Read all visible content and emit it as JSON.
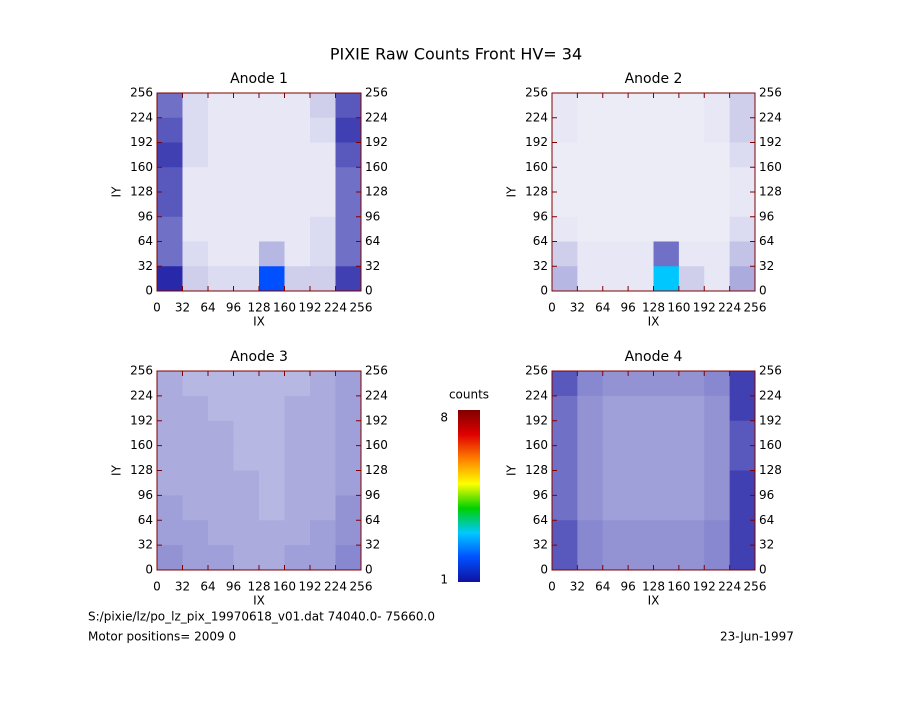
{
  "title": "PIXIE Raw Counts Front HV= 34",
  "footer": {
    "file": "S:/pixie/lz/po_lz_pix_19970618_v01.dat   74040.0- 75660.0",
    "motor": "Motor positions= 2009 0",
    "date": "23-Jun-1997"
  },
  "colorbar": {
    "label": "counts",
    "clim": [
      1,
      8
    ],
    "ticks": [
      1,
      8
    ],
    "colors": [
      "#1010a0",
      "#0050ff",
      "#00c8ff",
      "#00d000",
      "#ffff00",
      "#ff8000",
      "#e00000",
      "#800000"
    ]
  },
  "chart_data": [
    {
      "type": "heatmap",
      "title": "Anode 1",
      "xlabel": "IX",
      "ylabel": "IY",
      "xlim": [
        0,
        256
      ],
      "ylim": [
        0,
        256
      ],
      "xticks": [
        0,
        32,
        64,
        96,
        128,
        160,
        192,
        224,
        256
      ],
      "yticks": [
        0,
        32,
        64,
        96,
        128,
        160,
        192,
        224,
        256
      ],
      "z": [
        [
          0.6,
          0.15,
          0.1,
          0.1,
          0.1,
          0.1,
          0.2,
          0.7
        ],
        [
          0.7,
          0.15,
          0.1,
          0.1,
          0.1,
          0.1,
          0.15,
          0.8
        ],
        [
          0.8,
          0.15,
          0.1,
          0.1,
          0.1,
          0.1,
          0.1,
          0.7
        ],
        [
          0.7,
          0.1,
          0.1,
          0.1,
          0.1,
          0.1,
          0.1,
          0.6
        ],
        [
          0.7,
          0.1,
          0.1,
          0.1,
          0.1,
          0.1,
          0.1,
          0.6
        ],
        [
          0.6,
          0.1,
          0.1,
          0.1,
          0.1,
          0.1,
          0.15,
          0.6
        ],
        [
          0.6,
          0.15,
          0.1,
          0.1,
          0.3,
          0.1,
          0.15,
          0.6
        ],
        [
          0.9,
          0.2,
          0.15,
          0.15,
          2.0,
          0.2,
          0.2,
          0.8
        ]
      ]
    },
    {
      "type": "heatmap",
      "title": "Anode 2",
      "xlabel": "IX",
      "ylabel": "IY",
      "xlim": [
        0,
        256
      ],
      "ylim": [
        0,
        256
      ],
      "xticks": [
        0,
        32,
        64,
        96,
        128,
        160,
        192,
        224,
        256
      ],
      "yticks": [
        0,
        32,
        64,
        96,
        128,
        160,
        192,
        224,
        256
      ],
      "z": [
        [
          0.1,
          0.08,
          0.08,
          0.08,
          0.08,
          0.08,
          0.1,
          0.2
        ],
        [
          0.1,
          0.08,
          0.08,
          0.08,
          0.08,
          0.08,
          0.1,
          0.2
        ],
        [
          0.08,
          0.08,
          0.08,
          0.08,
          0.08,
          0.08,
          0.08,
          0.15
        ],
        [
          0.08,
          0.08,
          0.08,
          0.08,
          0.08,
          0.08,
          0.08,
          0.1
        ],
        [
          0.08,
          0.08,
          0.08,
          0.08,
          0.08,
          0.08,
          0.08,
          0.1
        ],
        [
          0.1,
          0.08,
          0.08,
          0.08,
          0.08,
          0.08,
          0.08,
          0.15
        ],
        [
          0.2,
          0.1,
          0.1,
          0.1,
          0.6,
          0.1,
          0.1,
          0.25
        ],
        [
          0.3,
          0.1,
          0.1,
          0.1,
          3.0,
          0.2,
          0.1,
          0.35
        ]
      ]
    },
    {
      "type": "heatmap",
      "title": "Anode 3",
      "xlabel": "IX",
      "ylabel": "IY",
      "xlim": [
        0,
        256
      ],
      "ylim": [
        0,
        256
      ],
      "xticks": [
        0,
        32,
        64,
        96,
        128,
        160,
        192,
        224,
        256
      ],
      "yticks": [
        0,
        32,
        64,
        96,
        128,
        160,
        192,
        224,
        256
      ],
      "z": [
        [
          0.35,
          0.3,
          0.3,
          0.3,
          0.3,
          0.3,
          0.35,
          0.4
        ],
        [
          0.35,
          0.35,
          0.3,
          0.3,
          0.3,
          0.35,
          0.35,
          0.4
        ],
        [
          0.35,
          0.35,
          0.35,
          0.3,
          0.3,
          0.35,
          0.35,
          0.4
        ],
        [
          0.35,
          0.35,
          0.35,
          0.3,
          0.3,
          0.35,
          0.35,
          0.4
        ],
        [
          0.35,
          0.35,
          0.35,
          0.35,
          0.3,
          0.35,
          0.35,
          0.4
        ],
        [
          0.4,
          0.35,
          0.35,
          0.35,
          0.3,
          0.35,
          0.35,
          0.45
        ],
        [
          0.4,
          0.4,
          0.35,
          0.35,
          0.35,
          0.35,
          0.4,
          0.45
        ],
        [
          0.45,
          0.4,
          0.4,
          0.35,
          0.35,
          0.4,
          0.4,
          0.5
        ]
      ]
    },
    {
      "type": "heatmap",
      "title": "Anode 4",
      "xlabel": "IX",
      "ylabel": "IY",
      "xlim": [
        0,
        256
      ],
      "ylim": [
        0,
        256
      ],
      "xticks": [
        0,
        32,
        64,
        96,
        128,
        160,
        192,
        224,
        256
      ],
      "yticks": [
        0,
        32,
        64,
        96,
        128,
        160,
        192,
        224,
        256
      ],
      "z": [
        [
          0.7,
          0.5,
          0.45,
          0.45,
          0.45,
          0.45,
          0.5,
          0.8
        ],
        [
          0.6,
          0.45,
          0.4,
          0.4,
          0.4,
          0.4,
          0.45,
          0.8
        ],
        [
          0.6,
          0.45,
          0.4,
          0.4,
          0.4,
          0.4,
          0.45,
          0.7
        ],
        [
          0.6,
          0.45,
          0.4,
          0.4,
          0.4,
          0.4,
          0.45,
          0.7
        ],
        [
          0.6,
          0.45,
          0.4,
          0.4,
          0.4,
          0.4,
          0.45,
          0.8
        ],
        [
          0.6,
          0.45,
          0.4,
          0.4,
          0.4,
          0.4,
          0.45,
          0.8
        ],
        [
          0.7,
          0.5,
          0.45,
          0.45,
          0.45,
          0.45,
          0.5,
          0.8
        ],
        [
          0.7,
          0.5,
          0.45,
          0.45,
          0.45,
          0.45,
          0.5,
          0.8
        ]
      ]
    }
  ]
}
